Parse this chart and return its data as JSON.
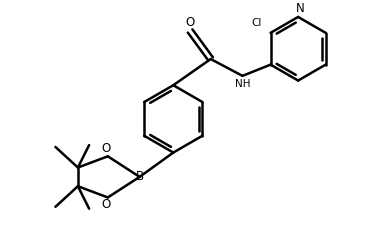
{
  "bg_color": "#ffffff",
  "line_color": "#000000",
  "line_width": 1.8,
  "font_size": 7.5,
  "fig_width": 3.84,
  "fig_height": 2.4,
  "dpi": 100,
  "xlim": [
    0,
    10
  ],
  "ylim": [
    0,
    6.25
  ]
}
